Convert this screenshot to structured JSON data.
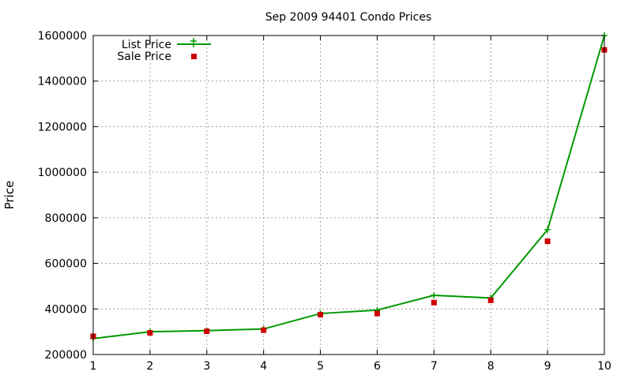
{
  "chart_data": {
    "type": "line",
    "title": "Sep 2009 94401 Condo Prices",
    "xlabel": "",
    "ylabel": "Price",
    "x": [
      1,
      2,
      3,
      4,
      5,
      6,
      7,
      8,
      9,
      10
    ],
    "xlim": [
      1,
      10
    ],
    "ylim": [
      200000,
      1600000
    ],
    "xticks": [
      "1",
      "2",
      "3",
      "4",
      "5",
      "6",
      "7",
      "8",
      "9",
      "10"
    ],
    "yticks": [
      "200000",
      "400000",
      "600000",
      "800000",
      "1000000",
      "1200000",
      "1400000",
      "1600000"
    ],
    "grid": true,
    "legend_position": "top-left",
    "series": [
      {
        "name": "List Price",
        "style": "line-with-plus-markers",
        "color": "#009900",
        "values": [
          270000,
          300000,
          305000,
          312000,
          380000,
          395000,
          460000,
          448000,
          748000,
          1600000
        ]
      },
      {
        "name": "Sale Price",
        "style": "square-markers",
        "color": "#cc0000",
        "values": [
          280000,
          295000,
          302000,
          307000,
          375000,
          380000,
          428000,
          438000,
          697000,
          1537000
        ]
      }
    ]
  }
}
